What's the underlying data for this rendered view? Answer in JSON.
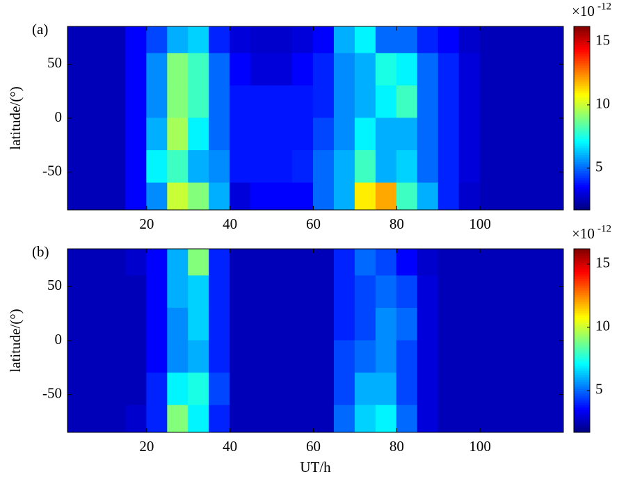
{
  "chart_data": [
    {
      "type": "heatmap",
      "panel_label": "(a)",
      "ylabel": "latitude/(°)",
      "colormap": "jet",
      "x": [
        2.5,
        7.5,
        12.5,
        17.5,
        22.5,
        27.5,
        32.5,
        37.5,
        42.5,
        47.5,
        52.5,
        57.5,
        62.5,
        67.5,
        72.5,
        77.5,
        82.5,
        87.5,
        92.5,
        97.5,
        102.5,
        107.5,
        112.5,
        117.5
      ],
      "y": [
        75,
        45,
        15,
        -15,
        -45,
        -75
      ],
      "z": [
        [
          2.5,
          2.5,
          2.5,
          3.5,
          4.5,
          6,
          6.5,
          4,
          3,
          2.8,
          2.8,
          3,
          3.5,
          6,
          7,
          5,
          5,
          4,
          3.5,
          2.8,
          2.5,
          2.5,
          2.5,
          2.5
        ],
        [
          2.5,
          2.5,
          2.5,
          3.5,
          5.5,
          9,
          8,
          5,
          3.5,
          3,
          3,
          3.5,
          4,
          5.5,
          6,
          7.5,
          7,
          5,
          4,
          3,
          2.5,
          2.5,
          2.5,
          2.5
        ],
        [
          2.5,
          2.5,
          2.5,
          3.5,
          5.5,
          9,
          8,
          5,
          3.8,
          3.8,
          3.8,
          3.8,
          4,
          5.5,
          6,
          7,
          8,
          5,
          4,
          3,
          2.5,
          2.5,
          2.5,
          2.5
        ],
        [
          2.5,
          2.5,
          2.5,
          3.5,
          6,
          9.5,
          7,
          5,
          3.8,
          3.8,
          3.8,
          3.8,
          4.5,
          5.5,
          7,
          6,
          6,
          5,
          4,
          3,
          2.5,
          2.5,
          2.5,
          2.5
        ],
        [
          2.5,
          2.5,
          2.5,
          3.5,
          7,
          8,
          6,
          5.5,
          3.8,
          3.8,
          3.8,
          4,
          5,
          6,
          8,
          6,
          6.5,
          5,
          4,
          3,
          2.5,
          2.5,
          2.5,
          2.5
        ],
        [
          2.5,
          2.5,
          2.5,
          3.5,
          5.5,
          10,
          9,
          6,
          3,
          3.5,
          3.5,
          3.5,
          5,
          6,
          11,
          12,
          8,
          6,
          4,
          2.8,
          2.5,
          2.5,
          2.5,
          2.5
        ]
      ],
      "xlim": [
        1,
        120
      ],
      "ylim": [
        -85,
        85
      ],
      "xticks": [
        20,
        40,
        60,
        80,
        100
      ],
      "yticks": [
        50,
        0,
        -50
      ],
      "colorbar": {
        "lim": [
          1.7,
          16.2
        ],
        "ticks": [
          5,
          10,
          15
        ],
        "exponent_base": "×10",
        "exponent": "-12"
      }
    },
    {
      "type": "heatmap",
      "panel_label": "(b)",
      "ylabel": "latitude/(°)",
      "xlabel": "UT/h",
      "colormap": "jet",
      "x": [
        2.5,
        7.5,
        12.5,
        17.5,
        22.5,
        27.5,
        32.5,
        37.5,
        42.5,
        47.5,
        52.5,
        57.5,
        62.5,
        67.5,
        72.5,
        77.5,
        82.5,
        87.5,
        92.5,
        97.5,
        102.5,
        107.5,
        112.5,
        117.5
      ],
      "y": [
        75,
        45,
        15,
        -15,
        -45,
        -75
      ],
      "z": [
        [
          2.5,
          2.5,
          2.5,
          2.8,
          3.5,
          6,
          9,
          4,
          2.5,
          2.5,
          2.5,
          2.5,
          2.5,
          4,
          5,
          4.5,
          3.5,
          2.8,
          2.5,
          2.5,
          2.5,
          2.5,
          2.5,
          2.5
        ],
        [
          2.5,
          2.5,
          2.5,
          2.5,
          3.5,
          6,
          6.5,
          4,
          2.5,
          2.5,
          2.5,
          2.5,
          2.5,
          4,
          4.5,
          5,
          4.5,
          3,
          2.5,
          2.5,
          2.5,
          2.5,
          2.5,
          2.5
        ],
        [
          2.5,
          2.5,
          2.5,
          2.5,
          3.5,
          5.5,
          6.5,
          4,
          2.5,
          2.5,
          2.5,
          2.5,
          2.5,
          4,
          4.5,
          5.5,
          5,
          3,
          2.5,
          2.5,
          2.5,
          2.5,
          2.5,
          2.5
        ],
        [
          2.5,
          2.5,
          2.5,
          2.5,
          3.5,
          5.5,
          6,
          4,
          2.5,
          2.5,
          2.5,
          2.5,
          2.5,
          4.5,
          5,
          5.5,
          4.5,
          3,
          2.5,
          2.5,
          2.5,
          2.5,
          2.5,
          2.5
        ],
        [
          2.5,
          2.5,
          2.5,
          2.5,
          4,
          7,
          7.5,
          4.5,
          2.5,
          2.5,
          2.5,
          2.5,
          2.5,
          4.5,
          6,
          6,
          4.5,
          3,
          2.5,
          2.5,
          2.5,
          2.5,
          2.5,
          2.5
        ],
        [
          2.5,
          2.5,
          2.5,
          2.8,
          4,
          9,
          7,
          4,
          2.5,
          2.5,
          2.5,
          2.5,
          2.5,
          5,
          6.5,
          7,
          5,
          3,
          2.5,
          2.5,
          2.5,
          2.5,
          2.5,
          2.5
        ]
      ],
      "xlim": [
        1,
        120
      ],
      "ylim": [
        -85,
        85
      ],
      "xticks": [
        20,
        40,
        60,
        80,
        100
      ],
      "yticks": [
        50,
        0,
        -50
      ],
      "colorbar": {
        "lim": [
          1.7,
          16.2
        ],
        "ticks": [
          5,
          10,
          15
        ],
        "exponent_base": "×10",
        "exponent": "-12"
      }
    }
  ]
}
